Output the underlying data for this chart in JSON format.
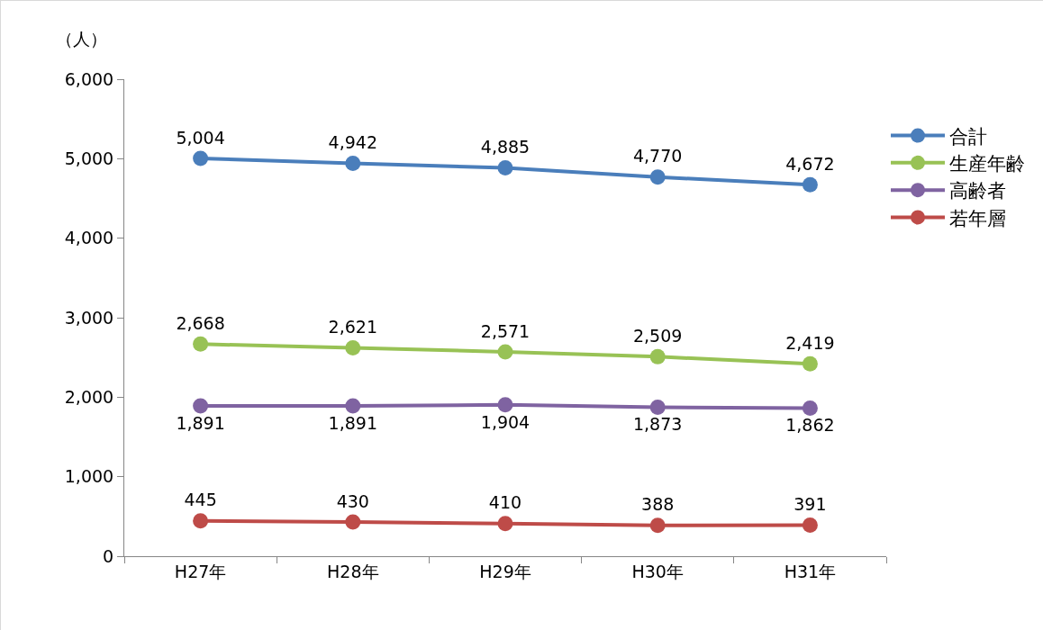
{
  "chart_data": {
    "type": "line",
    "ylabel": "（人）",
    "categories": [
      "H27年",
      "H28年",
      "H29年",
      "H30年",
      "H31年"
    ],
    "series": [
      {
        "name": "合計",
        "color": "#4a7ebb",
        "values": [
          5004,
          4942,
          4885,
          4770,
          4672
        ],
        "value_labels": [
          "5,004",
          "4,942",
          "4,885",
          "4,770",
          "4,672"
        ]
      },
      {
        "name": "生産年齢",
        "color": "#98c255",
        "values": [
          2668,
          2621,
          2571,
          2509,
          2419
        ],
        "value_labels": [
          "2,668",
          "2,621",
          "2,571",
          "2,509",
          "2,419"
        ]
      },
      {
        "name": "高齢者",
        "color": "#7f63a1",
        "values": [
          1891,
          1891,
          1904,
          1873,
          1862
        ],
        "value_labels": [
          "1,891",
          "1,891",
          "1,904",
          "1,873",
          "1,862"
        ]
      },
      {
        "name": "若年層",
        "color": "#be4b48",
        "values": [
          445,
          430,
          410,
          388,
          391
        ],
        "value_labels": [
          "445",
          "430",
          "410",
          "388",
          "391"
        ]
      }
    ],
    "ylim": [
      0,
      6000
    ],
    "yticks": [
      {
        "value": 0,
        "label": "0"
      },
      {
        "value": 1000,
        "label": "1,000"
      },
      {
        "value": 2000,
        "label": "2,000"
      },
      {
        "value": 3000,
        "label": "3,000"
      },
      {
        "value": 4000,
        "label": "4,000"
      },
      {
        "value": 5000,
        "label": "5,000"
      },
      {
        "value": 6000,
        "label": "6,000"
      }
    ],
    "grid": false,
    "legend": "right",
    "marker": "circle",
    "line_style": "solid"
  }
}
